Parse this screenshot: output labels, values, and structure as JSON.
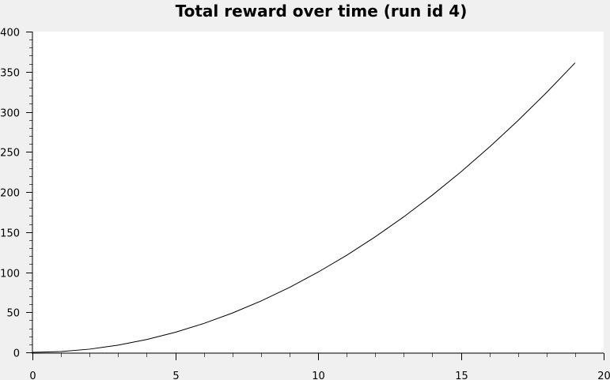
{
  "chart_data": {
    "type": "line",
    "title": "Total reward over time (run id 4)",
    "xlabel": "",
    "ylabel": "",
    "xlim": [
      0,
      20
    ],
    "ylim": [
      0,
      400
    ],
    "x_ticks": [
      0,
      5,
      10,
      15,
      20
    ],
    "y_ticks": [
      0,
      50,
      100,
      150,
      200,
      250,
      300,
      350,
      400
    ],
    "x_minor_step": 1,
    "y_minor_step": 10,
    "grid": false,
    "legend": "none",
    "colors": {
      "line": "#000000",
      "plot_background": "#ffffff",
      "page_background": "#f0f0f0"
    },
    "series": [
      {
        "x": [
          0,
          1,
          2,
          3,
          4,
          5,
          6,
          7,
          8,
          9,
          10,
          11,
          12,
          13,
          14,
          15,
          16,
          17,
          18,
          19
        ],
        "values": [
          0,
          1,
          4,
          9,
          16,
          25,
          36,
          49,
          64,
          81,
          100,
          121,
          144,
          169,
          196,
          225,
          256,
          289,
          324,
          361
        ]
      }
    ]
  }
}
